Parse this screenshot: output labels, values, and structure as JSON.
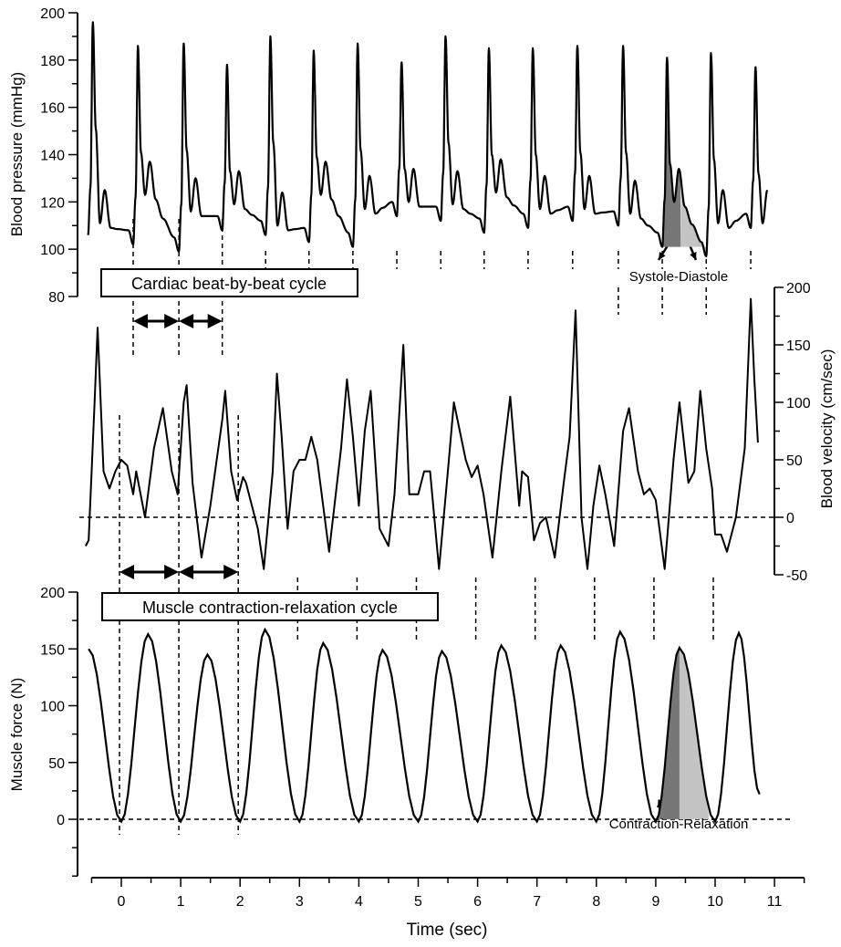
{
  "chart_data": [
    {
      "type": "line",
      "name": "blood-pressure",
      "ylabel": "Blood pressure (mmHg)",
      "ylim": [
        80,
        200
      ],
      "yticks": [
        80,
        100,
        120,
        140,
        160,
        180,
        200
      ],
      "beats": [
        {
          "foot_t": -0.56,
          "foot_v": 106,
          "peak": 196,
          "secondary": 125
        },
        {
          "foot_t": 0.2,
          "foot_v": 102,
          "peak": 186,
          "secondary": 137
        },
        {
          "foot_t": 0.97,
          "foot_v": 99,
          "peak": 187,
          "secondary": 130
        },
        {
          "foot_t": 1.7,
          "foot_v": 108,
          "peak": 178,
          "secondary": 133
        },
        {
          "foot_t": 2.43,
          "foot_v": 106,
          "peak": 190,
          "secondary": 124
        },
        {
          "foot_t": 3.16,
          "foot_v": 103,
          "peak": 184,
          "secondary": 137
        },
        {
          "foot_t": 3.9,
          "foot_v": 101,
          "peak": 187,
          "secondary": 131
        },
        {
          "foot_t": 4.64,
          "foot_v": 114,
          "peak": 179,
          "secondary": 134
        },
        {
          "foot_t": 5.38,
          "foot_v": 112,
          "peak": 190,
          "secondary": 133
        },
        {
          "foot_t": 6.11,
          "foot_v": 107,
          "peak": 185,
          "secondary": 138
        },
        {
          "foot_t": 6.85,
          "foot_v": 109,
          "peak": 185,
          "secondary": 131
        },
        {
          "foot_t": 7.6,
          "foot_v": 112,
          "peak": 186,
          "secondary": 131
        },
        {
          "foot_t": 8.37,
          "foot_v": 110,
          "peak": 186,
          "secondary": 129
        },
        {
          "foot_t": 9.11,
          "foot_v": 101,
          "peak": 181,
          "secondary": 134
        },
        {
          "foot_t": 9.85,
          "foot_v": 97,
          "peak": 183,
          "secondary": 125
        },
        {
          "foot_t": 10.6,
          "foot_v": 109,
          "peak": 177,
          "secondary": 125
        }
      ],
      "annotation": "Systole-Diastole",
      "box_label": "Cardiac beat-by-beat cycle"
    },
    {
      "type": "line",
      "name": "blood-velocity",
      "ylabel": "Blood velocity (cm/sec)",
      "ylim": [
        -50,
        200
      ],
      "yticks": [
        -50,
        0,
        50,
        100,
        150,
        200
      ],
      "points": [
        [
          -0.6,
          -25
        ],
        [
          -0.55,
          -20
        ],
        [
          -0.45,
          100
        ],
        [
          -0.4,
          165
        ],
        [
          -0.3,
          40
        ],
        [
          -0.2,
          25
        ],
        [
          -0.1,
          40
        ],
        [
          0,
          50
        ],
        [
          0.1,
          45
        ],
        [
          0.2,
          20
        ],
        [
          0.25,
          40
        ],
        [
          0.4,
          0
        ],
        [
          0.55,
          60
        ],
        [
          0.7,
          95
        ],
        [
          0.85,
          40
        ],
        [
          0.95,
          20
        ],
        [
          1.05,
          100
        ],
        [
          1.1,
          115
        ],
        [
          1.2,
          30
        ],
        [
          1.35,
          -35
        ],
        [
          1.5,
          10
        ],
        [
          1.7,
          85
        ],
        [
          1.75,
          110
        ],
        [
          1.85,
          40
        ],
        [
          1.95,
          15
        ],
        [
          2.05,
          35
        ],
        [
          2.1,
          30
        ],
        [
          2.3,
          -10
        ],
        [
          2.4,
          -45
        ],
        [
          2.55,
          40
        ],
        [
          2.62,
          125
        ],
        [
          2.7,
          70
        ],
        [
          2.8,
          -10
        ],
        [
          2.9,
          40
        ],
        [
          3.0,
          50
        ],
        [
          3.1,
          50
        ],
        [
          3.2,
          70
        ],
        [
          3.3,
          50
        ],
        [
          3.5,
          -30
        ],
        [
          3.7,
          60
        ],
        [
          3.8,
          120
        ],
        [
          3.9,
          70
        ],
        [
          4.0,
          10
        ],
        [
          4.1,
          75
        ],
        [
          4.2,
          110
        ],
        [
          4.35,
          -10
        ],
        [
          4.5,
          -25
        ],
        [
          4.6,
          20
        ],
        [
          4.75,
          150
        ],
        [
          4.85,
          20
        ],
        [
          5.0,
          20
        ],
        [
          5.1,
          40
        ],
        [
          5.2,
          40
        ],
        [
          5.35,
          -45
        ],
        [
          5.5,
          40
        ],
        [
          5.6,
          100
        ],
        [
          5.8,
          50
        ],
        [
          5.9,
          35
        ],
        [
          6.0,
          45
        ],
        [
          6.1,
          20
        ],
        [
          6.25,
          -35
        ],
        [
          6.4,
          40
        ],
        [
          6.55,
          105
        ],
        [
          6.7,
          10
        ],
        [
          6.75,
          40
        ],
        [
          6.85,
          35
        ],
        [
          6.95,
          -20
        ],
        [
          7.05,
          -5
        ],
        [
          7.15,
          0
        ],
        [
          7.3,
          -35
        ],
        [
          7.45,
          30
        ],
        [
          7.55,
          70
        ],
        [
          7.65,
          180
        ],
        [
          7.75,
          0
        ],
        [
          7.85,
          -45
        ],
        [
          7.95,
          10
        ],
        [
          8.05,
          45
        ],
        [
          8.15,
          20
        ],
        [
          8.3,
          -25
        ],
        [
          8.45,
          75
        ],
        [
          8.55,
          95
        ],
        [
          8.7,
          40
        ],
        [
          8.8,
          20
        ],
        [
          8.9,
          25
        ],
        [
          9.0,
          15
        ],
        [
          9.15,
          -45
        ],
        [
          9.3,
          50
        ],
        [
          9.4,
          100
        ],
        [
          9.55,
          30
        ],
        [
          9.65,
          40
        ],
        [
          9.75,
          110
        ],
        [
          9.85,
          60
        ],
        [
          9.95,
          25
        ],
        [
          10.0,
          -15
        ],
        [
          10.1,
          -15
        ],
        [
          10.2,
          -30
        ],
        [
          10.35,
          0
        ],
        [
          10.5,
          60
        ],
        [
          10.6,
          190
        ],
        [
          10.66,
          120
        ],
        [
          10.72,
          65
        ]
      ]
    },
    {
      "type": "line",
      "name": "muscle-force",
      "ylabel": "Muscle force (N)",
      "ylim": [
        -50,
        200
      ],
      "yticks": [
        0,
        50,
        100,
        150,
        200
      ],
      "start": [
        -0.55,
        150
      ],
      "troughs_t": [
        0,
        1,
        2,
        3,
        4,
        5,
        6,
        7,
        8,
        9,
        10
      ],
      "peaks": [
        [
          0.45,
          163
        ],
        [
          1.45,
          145
        ],
        [
          2.42,
          167
        ],
        [
          3.4,
          155
        ],
        [
          4.4,
          149
        ],
        [
          5.4,
          148
        ],
        [
          6.4,
          153
        ],
        [
          7.4,
          153
        ],
        [
          8.4,
          165
        ],
        [
          9.4,
          151
        ],
        [
          10.4,
          164
        ]
      ],
      "end": [
        10.75,
        22
      ],
      "annotation": "Contraction-Relaxation",
      "box_label": "Muscle contraction-relaxation cycle"
    }
  ],
  "xaxis": {
    "label": "Time (sec)",
    "xlim": [
      -0.5,
      11
    ],
    "ticks": [
      "0",
      "1",
      "2",
      "3",
      "4",
      "5",
      "6",
      "7",
      "8",
      "9",
      "10",
      "11"
    ]
  }
}
